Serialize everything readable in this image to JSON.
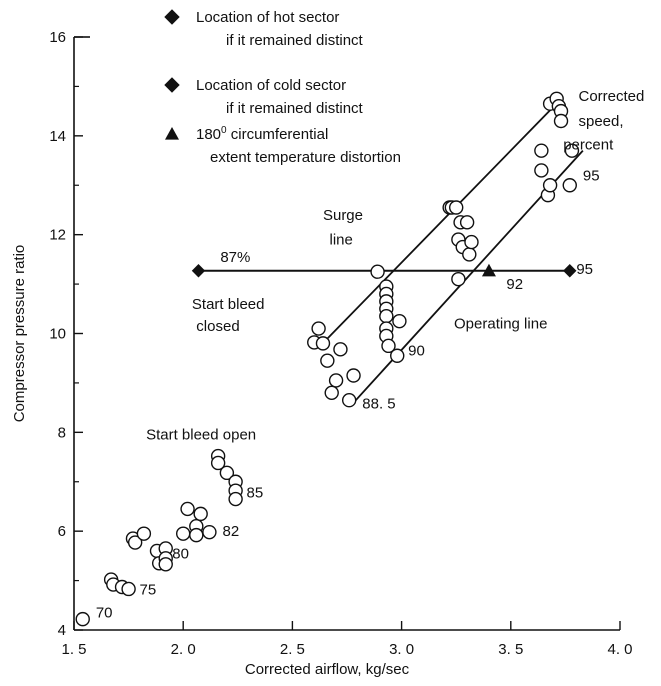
{
  "chart_data": {
    "type": "scatter",
    "xlabel": "Corrected airflow, kg/sec",
    "ylabel": "Compressor pressure ratio",
    "xlim": [
      1.5,
      4.0
    ],
    "ylim": [
      4,
      16
    ],
    "x_ticks": [
      1.5,
      2.0,
      2.5,
      3.0,
      3.5,
      4.0
    ],
    "x_tick_labels": [
      "1. 5",
      "2. 0",
      "2. 5",
      "3. 0",
      "3. 5",
      "4. 0"
    ],
    "y_ticks": [
      4,
      6,
      8,
      10,
      12,
      14,
      16
    ],
    "y_tick_labels": [
      "4",
      "6",
      "8",
      "10",
      "12",
      "14",
      "16"
    ],
    "grid": false,
    "legend": {
      "placement": "top",
      "entries": [
        {
          "marker": "diamond",
          "line1": "Location of hot sector",
          "line2": "if it remained distinct"
        },
        {
          "marker": "diamond",
          "line1": "Location of cold sector",
          "line2": "if it remained distinct"
        },
        {
          "marker": "triangle",
          "line1_main": "180",
          "line1_sup": "0",
          "line1_rest": " circumferential",
          "line2": "extent temperature distortion"
        }
      ]
    },
    "series": [
      {
        "marker": "open-circle",
        "points": [
          [
            1.54,
            4.22
          ],
          [
            1.67,
            5.02
          ],
          [
            1.68,
            4.92
          ],
          [
            1.72,
            4.87
          ],
          [
            1.75,
            4.83
          ],
          [
            1.77,
            5.85
          ],
          [
            1.78,
            5.77
          ],
          [
            1.82,
            5.95
          ],
          [
            1.88,
            5.6
          ],
          [
            1.89,
            5.35
          ],
          [
            1.92,
            5.65
          ],
          [
            1.92,
            5.45
          ],
          [
            1.92,
            5.33
          ],
          [
            2.0,
            5.95
          ],
          [
            2.02,
            6.45
          ],
          [
            2.06,
            6.1
          ],
          [
            2.06,
            5.92
          ],
          [
            2.08,
            6.35
          ],
          [
            2.12,
            5.98
          ],
          [
            2.16,
            7.52
          ],
          [
            2.16,
            7.38
          ],
          [
            2.2,
            7.18
          ],
          [
            2.24,
            7.0
          ],
          [
            2.24,
            6.82
          ],
          [
            2.24,
            6.65
          ],
          [
            2.6,
            9.82
          ],
          [
            2.62,
            10.1
          ],
          [
            2.64,
            9.8
          ],
          [
            2.66,
            9.45
          ],
          [
            2.68,
            8.8
          ],
          [
            2.7,
            9.05
          ],
          [
            2.72,
            9.68
          ],
          [
            2.76,
            8.65
          ],
          [
            2.78,
            9.15
          ],
          [
            2.89,
            11.25
          ],
          [
            2.93,
            10.95
          ],
          [
            2.93,
            10.8
          ],
          [
            2.93,
            10.65
          ],
          [
            2.93,
            10.5
          ],
          [
            2.93,
            10.35
          ],
          [
            2.93,
            10.1
          ],
          [
            2.93,
            9.95
          ],
          [
            2.94,
            9.75
          ],
          [
            2.98,
            9.55
          ],
          [
            2.99,
            10.25
          ],
          [
            3.22,
            12.55
          ],
          [
            3.23,
            12.55
          ],
          [
            3.25,
            12.55
          ],
          [
            3.26,
            11.9
          ],
          [
            3.26,
            11.1
          ],
          [
            3.27,
            12.25
          ],
          [
            3.28,
            11.75
          ],
          [
            3.3,
            12.25
          ],
          [
            3.31,
            11.6
          ],
          [
            3.32,
            11.85
          ],
          [
            3.64,
            13.7
          ],
          [
            3.64,
            13.3
          ],
          [
            3.67,
            12.8
          ],
          [
            3.68,
            13.0
          ],
          [
            3.68,
            14.65
          ],
          [
            3.71,
            14.75
          ],
          [
            3.72,
            14.6
          ],
          [
            3.73,
            14.5
          ],
          [
            3.73,
            14.3
          ],
          [
            3.77,
            13.0
          ],
          [
            3.78,
            13.7
          ]
        ]
      }
    ],
    "distortion_line": {
      "y": 11.27,
      "x_start": 2.07,
      "x_end": 3.77,
      "hot_sector": [
        2.07,
        11.27
      ],
      "cold_sector": [
        3.77,
        11.27
      ],
      "triangle": [
        3.4,
        11.27
      ]
    },
    "surge_line": {
      "x1": 2.65,
      "y1": 9.85,
      "x2": 3.72,
      "y2": 14.7
    },
    "operating_line": {
      "x1": 2.78,
      "y1": 8.6,
      "x2": 3.83,
      "y2": 13.7
    },
    "annotations": [
      {
        "text": "Corrected",
        "x": 3.81,
        "y": 14.7,
        "anchor": "start"
      },
      {
        "text": "speed,",
        "x": 3.81,
        "y": 14.2,
        "anchor": "start"
      },
      {
        "text": "percent",
        "x": 3.74,
        "y": 13.72,
        "anchor": "start"
      },
      {
        "text": "95",
        "x": 3.83,
        "y": 13.1,
        "anchor": "start"
      },
      {
        "text": "Surge",
        "x": 2.64,
        "y": 12.3,
        "anchor": "start"
      },
      {
        "text": "line",
        "x": 2.67,
        "y": 11.8,
        "anchor": "start"
      },
      {
        "text": "87%",
        "x": 2.17,
        "y": 11.45,
        "anchor": "start"
      },
      {
        "text": "95",
        "x": 3.8,
        "y": 11.2,
        "anchor": "start"
      },
      {
        "text": "92",
        "x": 3.48,
        "y": 10.9,
        "anchor": "start"
      },
      {
        "text": "Start bleed",
        "x": 2.04,
        "y": 10.5,
        "anchor": "start"
      },
      {
        "text": "closed",
        "x": 2.06,
        "y": 10.05,
        "anchor": "start"
      },
      {
        "text": "Operating line",
        "x": 3.24,
        "y": 10.1,
        "anchor": "start"
      },
      {
        "text": "90",
        "x": 3.03,
        "y": 9.55,
        "anchor": "start"
      },
      {
        "text": "88. 5",
        "x": 2.82,
        "y": 8.48,
        "anchor": "start"
      },
      {
        "text": "Start bleed open",
        "x": 1.83,
        "y": 7.85,
        "anchor": "start"
      },
      {
        "text": "85",
        "x": 2.29,
        "y": 6.68,
        "anchor": "start"
      },
      {
        "text": "82",
        "x": 2.18,
        "y": 5.9,
        "anchor": "start"
      },
      {
        "text": "80",
        "x": 1.95,
        "y": 5.45,
        "anchor": "start"
      },
      {
        "text": "75",
        "x": 1.8,
        "y": 4.72,
        "anchor": "start"
      },
      {
        "text": "70",
        "x": 1.6,
        "y": 4.25,
        "anchor": "start"
      }
    ]
  }
}
